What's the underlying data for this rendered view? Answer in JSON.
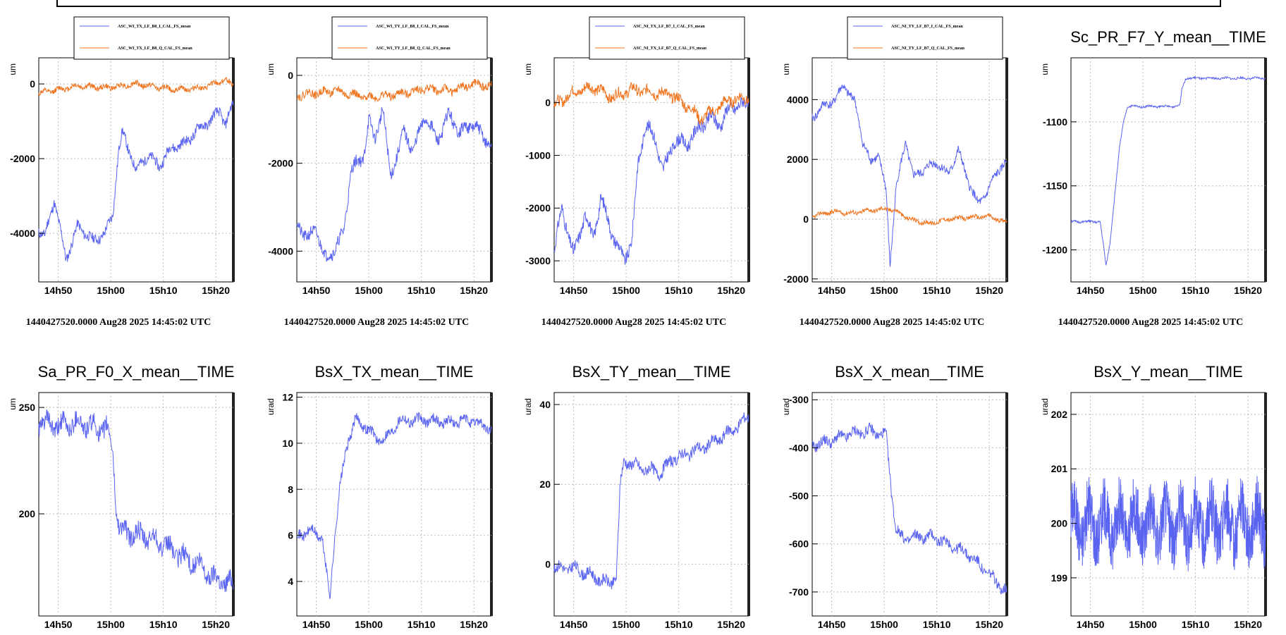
{
  "colors": {
    "blue": "#5a64f0",
    "orange": "#f0741e",
    "grid": "#bbbbbb"
  },
  "x_ticks": [
    "14h50",
    "15h00",
    "15h10",
    "15h20"
  ],
  "chart_data": [
    {
      "type": "line",
      "ylabel": "um",
      "yticks": [
        -4000,
        -2000,
        0
      ],
      "ylim": [
        -5300,
        700
      ],
      "legend": [
        "ASC_WI_TX_LF_B8_I_CAL_FS_mean",
        "ASC_WI_TX_LF_B8_Q_CAL_FS_mean"
      ],
      "stamp": "1440427520.0000 Aug28 2025 14:45:02 UTC",
      "series": [
        {
          "name": "ASC_WI_TX_LF_B8_I_CAL_FS_mean",
          "color": "blue",
          "noise": 130,
          "seed": 11,
          "points": [
            [
              0,
              -3900
            ],
            [
              0.03,
              -4100
            ],
            [
              0.08,
              -3100
            ],
            [
              0.14,
              -4700
            ],
            [
              0.2,
              -3800
            ],
            [
              0.28,
              -4200
            ],
            [
              0.34,
              -4000
            ],
            [
              0.38,
              -3500
            ],
            [
              0.41,
              -1800
            ],
            [
              0.43,
              -1300
            ],
            [
              0.5,
              -2300
            ],
            [
              0.56,
              -1900
            ],
            [
              0.62,
              -2200
            ],
            [
              0.68,
              -1700
            ],
            [
              0.75,
              -1600
            ],
            [
              0.82,
              -1200
            ],
            [
              0.88,
              -1000
            ],
            [
              0.93,
              -700
            ],
            [
              0.96,
              -1100
            ],
            [
              1,
              -500
            ]
          ]
        },
        {
          "name": "ASC_WI_TX_LF_B8_Q_CAL_FS_mean",
          "color": "orange",
          "noise": 70,
          "seed": 12,
          "points": [
            [
              0,
              -250
            ],
            [
              0.2,
              -50
            ],
            [
              0.35,
              -100
            ],
            [
              0.5,
              0
            ],
            [
              0.7,
              -150
            ],
            [
              0.85,
              -100
            ],
            [
              0.95,
              100
            ],
            [
              1,
              0
            ]
          ]
        }
      ]
    },
    {
      "type": "line",
      "ylabel": "um",
      "yticks": [
        -4000,
        -2000,
        0
      ],
      "ylim": [
        -4700,
        400
      ],
      "legend": [
        "ASC_WI_TY_LF_B8_I_CAL_FS_mean",
        "ASC_WI_TY_LF_B8_Q_CAL_FS_mean"
      ],
      "stamp": "1440427520.0000 Aug28 2025 14:45:02 UTC",
      "series": [
        {
          "name": "ASC_WI_TY_LF_B8_I_CAL_FS_mean",
          "color": "blue",
          "noise": 140,
          "seed": 21,
          "points": [
            [
              0,
              -3400
            ],
            [
              0.06,
              -3700
            ],
            [
              0.1,
              -3500
            ],
            [
              0.15,
              -4200
            ],
            [
              0.2,
              -3900
            ],
            [
              0.24,
              -3600
            ],
            [
              0.28,
              -2100
            ],
            [
              0.34,
              -1900
            ],
            [
              0.37,
              -1000
            ],
            [
              0.4,
              -1500
            ],
            [
              0.44,
              -700
            ],
            [
              0.48,
              -2300
            ],
            [
              0.55,
              -1300
            ],
            [
              0.6,
              -1700
            ],
            [
              0.66,
              -900
            ],
            [
              0.72,
              -1500
            ],
            [
              0.78,
              -900
            ],
            [
              0.84,
              -1300
            ],
            [
              0.9,
              -1100
            ],
            [
              0.96,
              -1400
            ],
            [
              1,
              -1600
            ]
          ]
        },
        {
          "name": "ASC_WI_TY_LF_B8_Q_CAL_FS_mean",
          "color": "orange",
          "noise": 90,
          "seed": 22,
          "points": [
            [
              0,
              -450
            ],
            [
              0.1,
              -400
            ],
            [
              0.2,
              -350
            ],
            [
              0.35,
              -500
            ],
            [
              0.5,
              -450
            ],
            [
              0.65,
              -300
            ],
            [
              0.8,
              -350
            ],
            [
              0.9,
              -200
            ],
            [
              1,
              -250
            ]
          ]
        }
      ]
    },
    {
      "type": "line",
      "ylabel": "um",
      "yticks": [
        -3000,
        -2000,
        -1000,
        0
      ],
      "ylim": [
        -3400,
        850
      ],
      "legend": [
        "ASC_NI_TX_LF_B7_I_CAL_FS_mean",
        "ASC_NI_TX_LF_B7_Q_CAL_FS_mean"
      ],
      "stamp": "1440427520.0000 Aug28 2025 14:45:02 UTC",
      "series": [
        {
          "name": "ASC_NI_TX_LF_B7_I_CAL_FS_mean",
          "color": "blue",
          "noise": 120,
          "seed": 31,
          "points": [
            [
              0,
              -2800
            ],
            [
              0.04,
              -2000
            ],
            [
              0.1,
              -2900
            ],
            [
              0.16,
              -2100
            ],
            [
              0.2,
              -2600
            ],
            [
              0.24,
              -1800
            ],
            [
              0.3,
              -2500
            ],
            [
              0.36,
              -3000
            ],
            [
              0.4,
              -2600
            ],
            [
              0.43,
              -1200
            ],
            [
              0.47,
              -400
            ],
            [
              0.52,
              -700
            ],
            [
              0.56,
              -1300
            ],
            [
              0.62,
              -700
            ],
            [
              0.68,
              -800
            ],
            [
              0.74,
              -500
            ],
            [
              0.8,
              -300
            ],
            [
              0.86,
              -400
            ],
            [
              0.9,
              -100
            ],
            [
              0.96,
              -50
            ],
            [
              1,
              0
            ]
          ]
        },
        {
          "name": "ASC_NI_TX_LF_B7_Q_CAL_FS_mean",
          "color": "orange",
          "noise": 100,
          "seed": 32,
          "points": [
            [
              0,
              -50
            ],
            [
              0.1,
              200
            ],
            [
              0.2,
              300
            ],
            [
              0.3,
              100
            ],
            [
              0.4,
              250
            ],
            [
              0.5,
              200
            ],
            [
              0.6,
              150
            ],
            [
              0.7,
              -100
            ],
            [
              0.75,
              -300
            ],
            [
              0.8,
              -200
            ],
            [
              0.9,
              50
            ],
            [
              1,
              100
            ]
          ]
        }
      ]
    },
    {
      "type": "line",
      "ylabel": "um",
      "yticks": [
        -2000,
        0,
        2000,
        4000
      ],
      "ylim": [
        -2100,
        5400
      ],
      "legend": [
        "ASC_NI_TY_LF_B7_I_CAL_FS_mean",
        "ASC_NI_TY_LF_B7_Q_CAL_FS_mean"
      ],
      "stamp": "1440427520.0000 Aug28 2025 14:45:02 UTC",
      "series": [
        {
          "name": "ASC_NI_TY_LF_B7_I_CAL_FS_mean",
          "color": "blue",
          "noise": 140,
          "seed": 41,
          "points": [
            [
              0,
              3400
            ],
            [
              0.06,
              3800
            ],
            [
              0.12,
              4000
            ],
            [
              0.16,
              4500
            ],
            [
              0.22,
              3900
            ],
            [
              0.26,
              2600
            ],
            [
              0.3,
              1900
            ],
            [
              0.34,
              2200
            ],
            [
              0.38,
              900
            ],
            [
              0.4,
              -1500
            ],
            [
              0.43,
              1000
            ],
            [
              0.48,
              2600
            ],
            [
              0.52,
              1400
            ],
            [
              0.58,
              1700
            ],
            [
              0.64,
              1900
            ],
            [
              0.7,
              1500
            ],
            [
              0.75,
              2300
            ],
            [
              0.8,
              1300
            ],
            [
              0.85,
              500
            ],
            [
              0.9,
              900
            ],
            [
              0.95,
              1600
            ],
            [
              1,
              1900
            ]
          ]
        },
        {
          "name": "ASC_NI_TY_LF_B7_Q_CAL_FS_mean",
          "color": "orange",
          "noise": 70,
          "seed": 42,
          "points": [
            [
              0,
              100
            ],
            [
              0.1,
              250
            ],
            [
              0.2,
              200
            ],
            [
              0.3,
              300
            ],
            [
              0.4,
              350
            ],
            [
              0.45,
              200
            ],
            [
              0.5,
              0
            ],
            [
              0.6,
              -150
            ],
            [
              0.7,
              0
            ],
            [
              0.8,
              50
            ],
            [
              0.9,
              100
            ],
            [
              1,
              -100
            ]
          ]
        }
      ]
    },
    {
      "type": "line",
      "title": "Sc_PR_F7_Y_mean__TIME",
      "ylabel": "um",
      "yticks": [
        -1200,
        -1150,
        -1100
      ],
      "ylim": [
        -1225,
        -1050
      ],
      "stamp": "1440427520.0000 Aug28 2025 14:45:02 UTC",
      "series": [
        {
          "color": "blue",
          "noise": 0.8,
          "seed": 51,
          "points": [
            [
              0,
              -1178
            ],
            [
              0.15,
              -1178
            ],
            [
              0.17,
              -1200
            ],
            [
              0.18,
              -1213
            ],
            [
              0.2,
              -1195
            ],
            [
              0.23,
              -1150
            ],
            [
              0.25,
              -1120
            ],
            [
              0.27,
              -1100
            ],
            [
              0.29,
              -1088
            ],
            [
              0.52,
              -1088
            ],
            [
              0.56,
              -1087
            ],
            [
              0.57,
              -1074
            ],
            [
              0.59,
              -1066
            ],
            [
              1,
              -1066
            ]
          ]
        }
      ]
    },
    {
      "type": "line",
      "title": "Sa_PR_F0_X_mean__TIME",
      "ylabel": "um",
      "yticks": [
        200,
        250
      ],
      "ylim": [
        152,
        257
      ],
      "series": [
        {
          "color": "blue",
          "noise": 4.5,
          "seed": 61,
          "points": [
            [
              0,
              243
            ],
            [
              0.1,
              241
            ],
            [
              0.2,
              243
            ],
            [
              0.3,
              240
            ],
            [
              0.35,
              240
            ],
            [
              0.38,
              230
            ],
            [
              0.4,
              200
            ],
            [
              0.42,
              192
            ],
            [
              0.5,
              190
            ],
            [
              0.6,
              188
            ],
            [
              0.7,
              182
            ],
            [
              0.8,
              177
            ],
            [
              0.9,
              170
            ],
            [
              1,
              167
            ]
          ]
        }
      ]
    },
    {
      "type": "line",
      "title": "BsX_TX_mean__TIME",
      "ylabel": "urad",
      "yticks": [
        4,
        6,
        8,
        10,
        12
      ],
      "ylim": [
        2.5,
        12.2
      ],
      "series": [
        {
          "color": "blue",
          "noise": 0.22,
          "seed": 71,
          "points": [
            [
              0,
              6
            ],
            [
              0.08,
              6.2
            ],
            [
              0.13,
              5.9
            ],
            [
              0.15,
              4.5
            ],
            [
              0.17,
              3.3
            ],
            [
              0.19,
              5.5
            ],
            [
              0.22,
              8
            ],
            [
              0.26,
              10
            ],
            [
              0.3,
              11
            ],
            [
              0.36,
              10.7
            ],
            [
              0.42,
              10.1
            ],
            [
              0.48,
              10.4
            ],
            [
              0.52,
              11
            ],
            [
              0.6,
              11
            ],
            [
              0.7,
              11
            ],
            [
              0.8,
              10.9
            ],
            [
              0.9,
              11
            ],
            [
              1,
              10.6
            ]
          ]
        }
      ]
    },
    {
      "type": "line",
      "title": "BsX_TY_mean__TIME",
      "ylabel": "urad",
      "yticks": [
        0,
        20,
        40
      ],
      "ylim": [
        -13,
        43
      ],
      "series": [
        {
          "color": "blue",
          "noise": 1.4,
          "seed": 81,
          "points": [
            [
              0,
              -1
            ],
            [
              0.1,
              -1
            ],
            [
              0.2,
              -3
            ],
            [
              0.28,
              -5
            ],
            [
              0.32,
              -3
            ],
            [
              0.34,
              20
            ],
            [
              0.36,
              26
            ],
            [
              0.45,
              24
            ],
            [
              0.55,
              23
            ],
            [
              0.6,
              26
            ],
            [
              0.7,
              28
            ],
            [
              0.8,
              30
            ],
            [
              0.9,
              33
            ],
            [
              1,
              37
            ]
          ]
        }
      ]
    },
    {
      "type": "line",
      "title": "BsX_X_mean__TIME",
      "ylabel": "urad",
      "yticks": [
        -700,
        -600,
        -500,
        -400,
        -300
      ],
      "ylim": [
        -750,
        -285
      ],
      "series": [
        {
          "color": "blue",
          "noise": 11,
          "seed": 91,
          "points": [
            [
              0,
              -395
            ],
            [
              0.1,
              -385
            ],
            [
              0.2,
              -370
            ],
            [
              0.3,
              -365
            ],
            [
              0.38,
              -375
            ],
            [
              0.4,
              -460
            ],
            [
              0.43,
              -570
            ],
            [
              0.47,
              -590
            ],
            [
              0.55,
              -585
            ],
            [
              0.62,
              -585
            ],
            [
              0.7,
              -600
            ],
            [
              0.8,
              -620
            ],
            [
              0.9,
              -660
            ],
            [
              1,
              -700
            ]
          ]
        }
      ]
    },
    {
      "type": "line",
      "title": "BsX_Y_mean__TIME",
      "ylabel": "urad",
      "yticks": [
        199,
        200,
        201,
        202
      ],
      "ylim": [
        198.3,
        202.4
      ],
      "series": [
        {
          "color": "blue",
          "noise": 0.55,
          "seed": 101,
          "samples": 900,
          "points": [
            [
              0,
              200
            ],
            [
              1,
              200
            ]
          ]
        }
      ]
    }
  ]
}
